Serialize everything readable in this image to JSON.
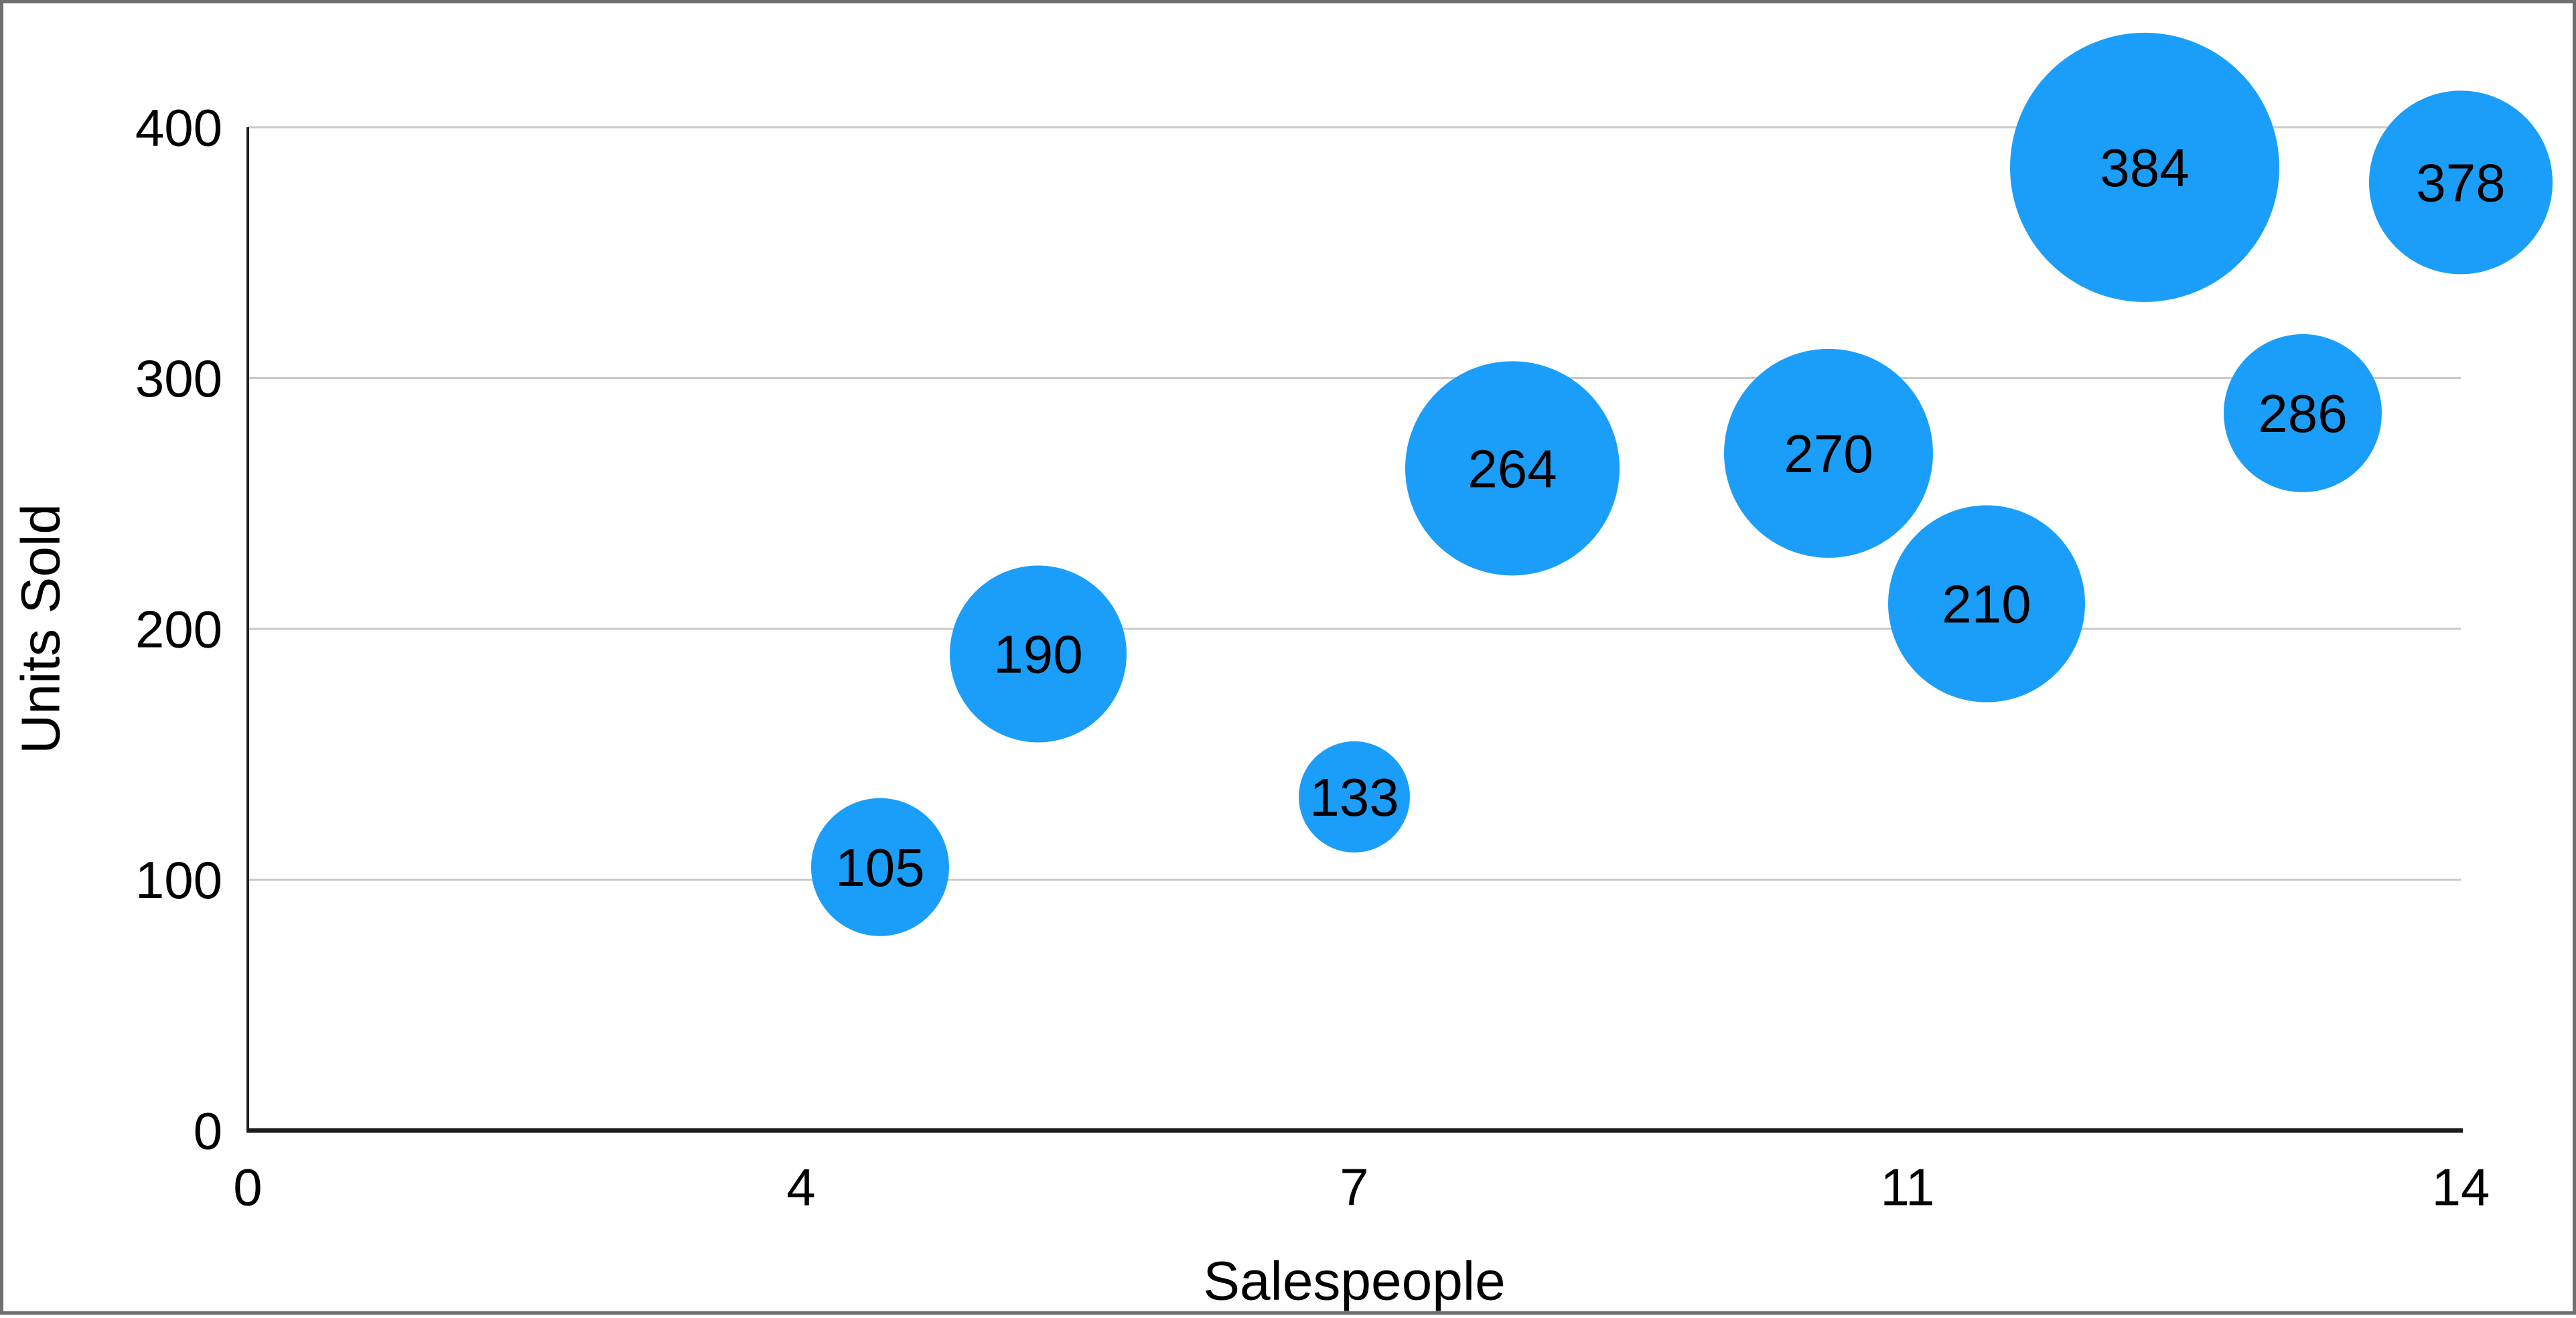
{
  "frame": {
    "background": "#ffffff",
    "border_color": "#6e6e73"
  },
  "chart_data": {
    "type": "scatter",
    "subtype": "bubble",
    "title": "",
    "xlabel": "Salespeople",
    "ylabel": "Units Sold",
    "xlim": [
      0,
      14
    ],
    "ylim": [
      0,
      400
    ],
    "grid": "horizontal-only",
    "legend": "none",
    "x_ticks": [
      {
        "label": "0",
        "position": 0
      },
      {
        "label": "4",
        "position": 3.5
      },
      {
        "label": "7",
        "position": 7
      },
      {
        "label": "11",
        "position": 10.5
      },
      {
        "label": "14",
        "position": 14
      }
    ],
    "y_ticks": [
      {
        "label": "0",
        "value": 0
      },
      {
        "label": "100",
        "value": 100
      },
      {
        "label": "200",
        "value": 200
      },
      {
        "label": "300",
        "value": 300
      },
      {
        "label": "400",
        "value": 400
      }
    ],
    "points": [
      {
        "x": 4,
        "y": 105,
        "label": "105",
        "bubble_radius_px": 103
      },
      {
        "x": 5,
        "y": 190,
        "label": "190",
        "bubble_radius_px": 132
      },
      {
        "x": 7,
        "y": 133,
        "label": "133",
        "bubble_radius_px": 83
      },
      {
        "x": 8,
        "y": 264,
        "label": "264",
        "bubble_radius_px": 160
      },
      {
        "x": 10,
        "y": 270,
        "label": "270",
        "bubble_radius_px": 156
      },
      {
        "x": 11,
        "y": 210,
        "label": "210",
        "bubble_radius_px": 147
      },
      {
        "x": 12,
        "y": 384,
        "label": "384",
        "bubble_radius_px": 201
      },
      {
        "x": 13,
        "y": 286,
        "label": "286",
        "bubble_radius_px": 118
      },
      {
        "x": 14,
        "y": 378,
        "label": "378",
        "bubble_radius_px": 137
      }
    ],
    "colors": {
      "bubble": "#1A9EFA",
      "gridline": "#c9c9c9",
      "axis": "#1c1c1c",
      "label_text": "#000000"
    }
  }
}
